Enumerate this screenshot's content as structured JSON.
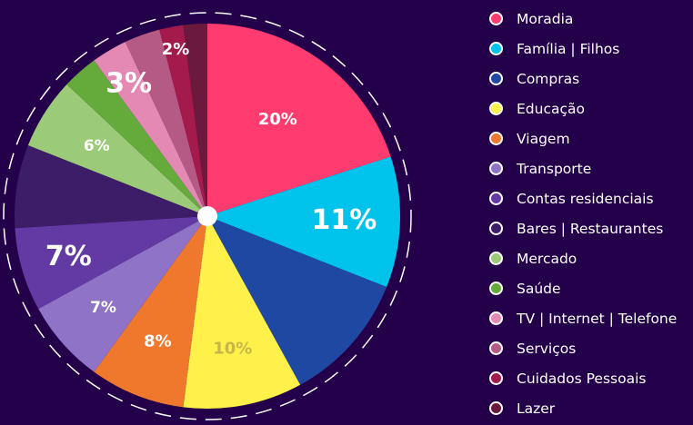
{
  "chart_data": {
    "type": "pie",
    "start_angle_deg": 0,
    "direction": "clockwise",
    "categories": [
      "Moradia",
      "Família | Filhos",
      "Compras",
      "Educação",
      "Viagem",
      "Transporte",
      "Contas residenciais",
      "Bares | Restaurantes",
      "Mercado",
      "Saúde",
      "TV | Internet | Telefone",
      "Serviços",
      "Cuidados Pessoais",
      "Lazer"
    ],
    "values": [
      20,
      11,
      11,
      10,
      8,
      7,
      7,
      7,
      6,
      3,
      3,
      3,
      2,
      2
    ],
    "colors": [
      "#ff3b6f",
      "#00c3ec",
      "#1f48a3",
      "#fff04a",
      "#f0782c",
      "#8f73c6",
      "#633aa3",
      "#3d1c68",
      "#9bca78",
      "#64ab3c",
      "#e488b4",
      "#b55a84",
      "#a51a4c",
      "#6b1a3e"
    ],
    "data_labels": [
      "20%",
      "11%",
      "",
      "10%",
      "8%",
      "7%",
      "7%",
      "",
      "6%",
      "",
      "3%",
      "",
      "2%",
      ""
    ],
    "label_colors": [
      "#ffffff",
      "#ffffff",
      "#ffffff",
      "#c8b54a",
      "#ffffff",
      "#ffffff",
      "#ffffff",
      "#ffffff",
      "#ffffff",
      "#ffffff",
      "#ffffff",
      "#ffffff",
      "#ffffff",
      "#ffffff"
    ],
    "legend": "right",
    "background": "#24004a"
  }
}
